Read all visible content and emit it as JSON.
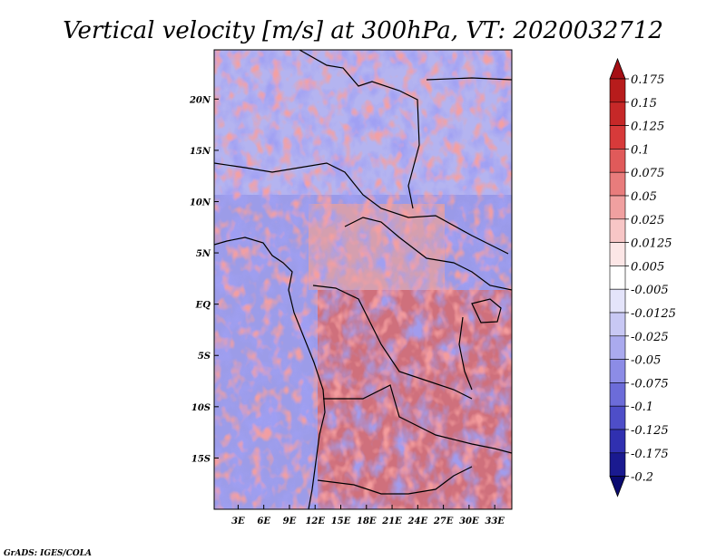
{
  "chart_data": {
    "type": "heatmap",
    "title": "Vertical velocity [m/s] at 300hPa, VT: 2020032712",
    "x_tick_labels": [
      "3E",
      "6E",
      "9E",
      "12E",
      "15E",
      "18E",
      "21E",
      "24E",
      "27E",
      "30E",
      "33E"
    ],
    "x_tick_values": [
      3,
      6,
      9,
      12,
      15,
      18,
      21,
      24,
      27,
      30,
      33
    ],
    "y_tick_labels": [
      "20N",
      "15N",
      "10N",
      "5N",
      "EQ",
      "5S",
      "10S",
      "15S"
    ],
    "y_tick_values": [
      20,
      15,
      10,
      5,
      0,
      -5,
      -10,
      -15
    ],
    "xlim": [
      0.2,
      35.0
    ],
    "ylim": [
      -20.0,
      24.8
    ],
    "colorbar": {
      "levels": [
        "0.175",
        "0.15",
        "0.125",
        "0.1",
        "0.075",
        "0.05",
        "0.025",
        "0.0125",
        "0.005",
        "-0.005",
        "-0.0125",
        "-0.025",
        "-0.05",
        "-0.075",
        "-0.1",
        "-0.125",
        "-0.175",
        "-0.2"
      ],
      "colors": [
        "#a50f15",
        "#b71c1c",
        "#c62828",
        "#d73a3a",
        "#e05a5a",
        "#e87c7c",
        "#f0a0a0",
        "#f7c6c6",
        "#fce6e6",
        "#ffffff",
        "#e4e4fa",
        "#c8c8f4",
        "#aaaaee",
        "#8c8ce6",
        "#6c6cd9",
        "#4e4ec8",
        "#3030b0",
        "#1a1a90",
        "#0a0a70"
      ],
      "top_arrow_color": "#a50f15",
      "bottom_arrow_color": "#0a0a70"
    }
  },
  "footer": {
    "credit": "GrADS: IGES/COLA"
  }
}
